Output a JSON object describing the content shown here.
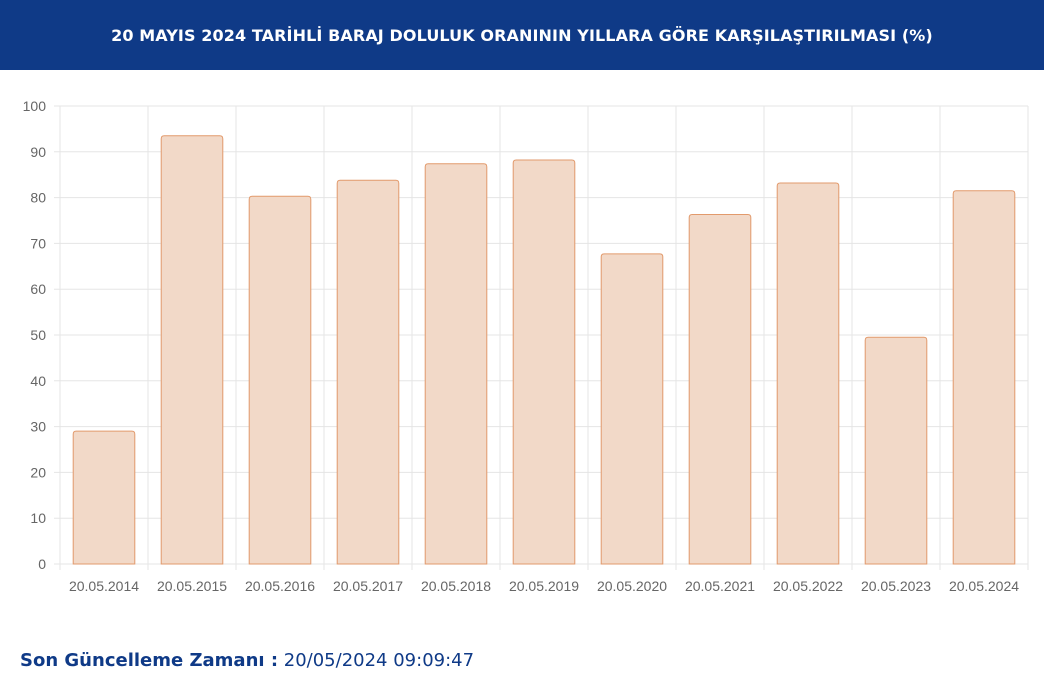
{
  "header": {
    "title": "20 MAYIS 2024 TARİHLİ BARAJ DOLULUK ORANININ YILLARA GÖRE KARŞILAŞTIRILMASI (%)"
  },
  "chart_data": {
    "type": "bar",
    "title": "20 MAYIS 2024 TARİHLİ BARAJ DOLULUK ORANININ YILLARA GÖRE KARŞILAŞTIRILMASI (%)",
    "categories": [
      "20.05.2014",
      "20.05.2015",
      "20.05.2016",
      "20.05.2017",
      "20.05.2018",
      "20.05.2019",
      "20.05.2020",
      "20.05.2021",
      "20.05.2022",
      "20.05.2023",
      "20.05.2024"
    ],
    "values": [
      29.0,
      93.5,
      80.3,
      83.8,
      87.4,
      88.2,
      67.7,
      76.3,
      83.2,
      49.5,
      81.5
    ],
    "ylim": [
      0,
      100
    ],
    "yticks": [
      0,
      10,
      20,
      30,
      40,
      50,
      60,
      70,
      80,
      90,
      100
    ],
    "grid": true,
    "colors": {
      "bar_fill": "#f2d9c8",
      "bar_border": "#e29a6c",
      "grid": "#e5e5e5",
      "tick_text": "#666666"
    }
  },
  "footer": {
    "label": "Son Güncelleme Zamanı :",
    "value": "20/05/2024 09:09:47"
  }
}
